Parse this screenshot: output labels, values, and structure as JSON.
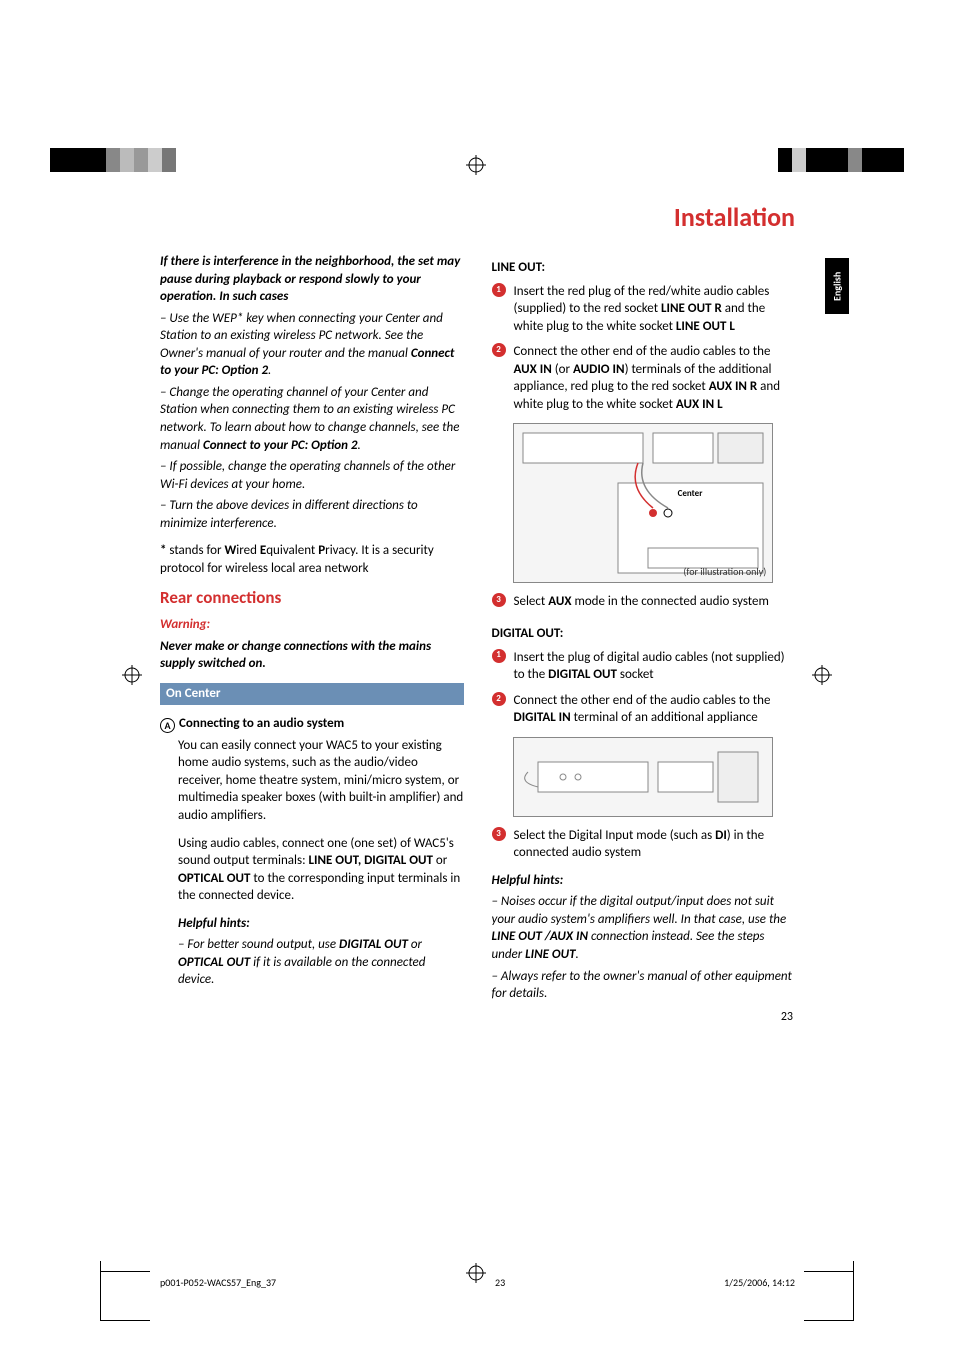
{
  "page_title": "Installation",
  "lang_tab": "English",
  "page_number": "23",
  "footer": {
    "file": "p001-P052-WACS57_Eng_37",
    "pg": "23",
    "date": "1/25/2006, 14:12"
  },
  "color_bar_top": [
    "#000000",
    "#000000",
    "#000000",
    "#000000",
    "#888888",
    "#bbbbbb",
    "#999999",
    "#cccccc",
    "#777777"
  ],
  "color_bar_top_r": [
    "#000000",
    "#cccccc",
    "#000000",
    "#000000",
    "#000000",
    "#888888",
    "#000000",
    "#000000",
    "#000000"
  ],
  "left": {
    "interf_head": "If there is interference in the neighborhood, the set may pause during playback or respond slowly to your operation. In such cases",
    "b1a": "–   Use the WEP* key when connecting your Center and Station to an existing wireless PC network. See the Owner's manual of your router and the manual ",
    "b1b": "Connect to your PC: Option 2",
    "b1c": ".",
    "b2a": "–   Change the operating channel of your Center and Station when connecting them to an existing wireless PC network. To learn about how to change channels, see the manual ",
    "b2b": "Connect to your PC: Option 2",
    "b2c": ".",
    "b3": "–   If possible, change the operating channels of the other Wi-Fi devices at your home.",
    "b4": "–   Turn the above devices in different directions to minimize interference.",
    "wep_a": "* ",
    "wep_b": "stands for ",
    "wep_c": "W",
    "wep_d": "ired ",
    "wep_e": "E",
    "wep_f": "quivalent ",
    "wep_g": "P",
    "wep_h": "rivacy. It is a security protocol for wireless local area network",
    "rear_head": "Rear connections",
    "warn_head": "Warning:",
    "warn_body": "Never make or change connections with the mains supply switched on.",
    "on_center": "On Center",
    "circle_a": "A",
    "conn_head": "Connecting to an audio system",
    "conn_p1": "You can easily connect your WAC5 to your existing home audio systems, such as the audio/video receiver, home theatre system, mini/micro system, or multimedia speaker boxes (with built-in amplifier) and audio amplifiers.",
    "conn_p2a": "Using audio cables, connect one (one set) of WAC5's sound output terminals: ",
    "conn_p2b": "LINE OUT, DIGITAL OUT",
    "conn_p2c": " or ",
    "conn_p2d": "OPTICAL OUT",
    "conn_p2e": " to the corresponding input terminals in the connected device.",
    "hint_head": "Helpful hints:",
    "hint_a": "–   For better sound output, use ",
    "hint_b": "DIGITAL OUT",
    "hint_c": " or ",
    "hint_d": "OPTICAL OUT",
    "hint_e": " if it is available on the connected device."
  },
  "right": {
    "lineout_head": "LINE OUT:",
    "s1n": "1",
    "s1a": "Insert the red plug of the red/white audio cables (supplied) to the red socket ",
    "s1b": "LINE OUT R",
    "s1c": " and the white plug to the white socket ",
    "s1d": "LINE OUT L",
    "s2n": "2",
    "s2a": "Connect the other end of the audio cables to the ",
    "s2b": "AUX IN",
    "s2c": " (or ",
    "s2d": "AUDIO IN",
    "s2e": ") terminals of the additional appliance, red plug to the red socket ",
    "s2f": "AUX IN R",
    "s2g": " and white plug to the white socket ",
    "s2h": "AUX IN L",
    "diag1_label": "Center",
    "diag1_cap": "(for illustration only)",
    "s3n": "3",
    "s3a": "Select ",
    "s3b": "AUX",
    "s3c": " mode in the connected audio system",
    "digout_head": "DIGITAL OUT:",
    "ds1n": "1",
    "ds1a": "Insert the plug of digital audio cables (not supplied) to the ",
    "ds1b": "DIGITAL OUT",
    "ds1c": " socket",
    "ds2n": "2",
    "ds2a": "Connect the other end of the audio cables to the ",
    "ds2b": "DIGITAL IN",
    "ds2c": " terminal of an additional appliance",
    "ds3n": "3",
    "ds3a": "Select the Digital Input mode (such as ",
    "ds3b": "DI",
    "ds3c": ") in the connected audio system",
    "hint_head": "Helpful hints:",
    "h1a": "–   Noises occur if the digital output/input does not suit your audio system's amplifiers well. In that case, use the ",
    "h1b": "LINE OUT /AUX IN",
    "h1c": " connection instead. See the steps under ",
    "h1d": "LINE OUT",
    "h1e": ".",
    "h2": "–   Always refer to the owner's manual of other equipment for details."
  },
  "style": {
    "accent_red": "#d32f2f",
    "blue_bar": "#6b8fb5"
  }
}
